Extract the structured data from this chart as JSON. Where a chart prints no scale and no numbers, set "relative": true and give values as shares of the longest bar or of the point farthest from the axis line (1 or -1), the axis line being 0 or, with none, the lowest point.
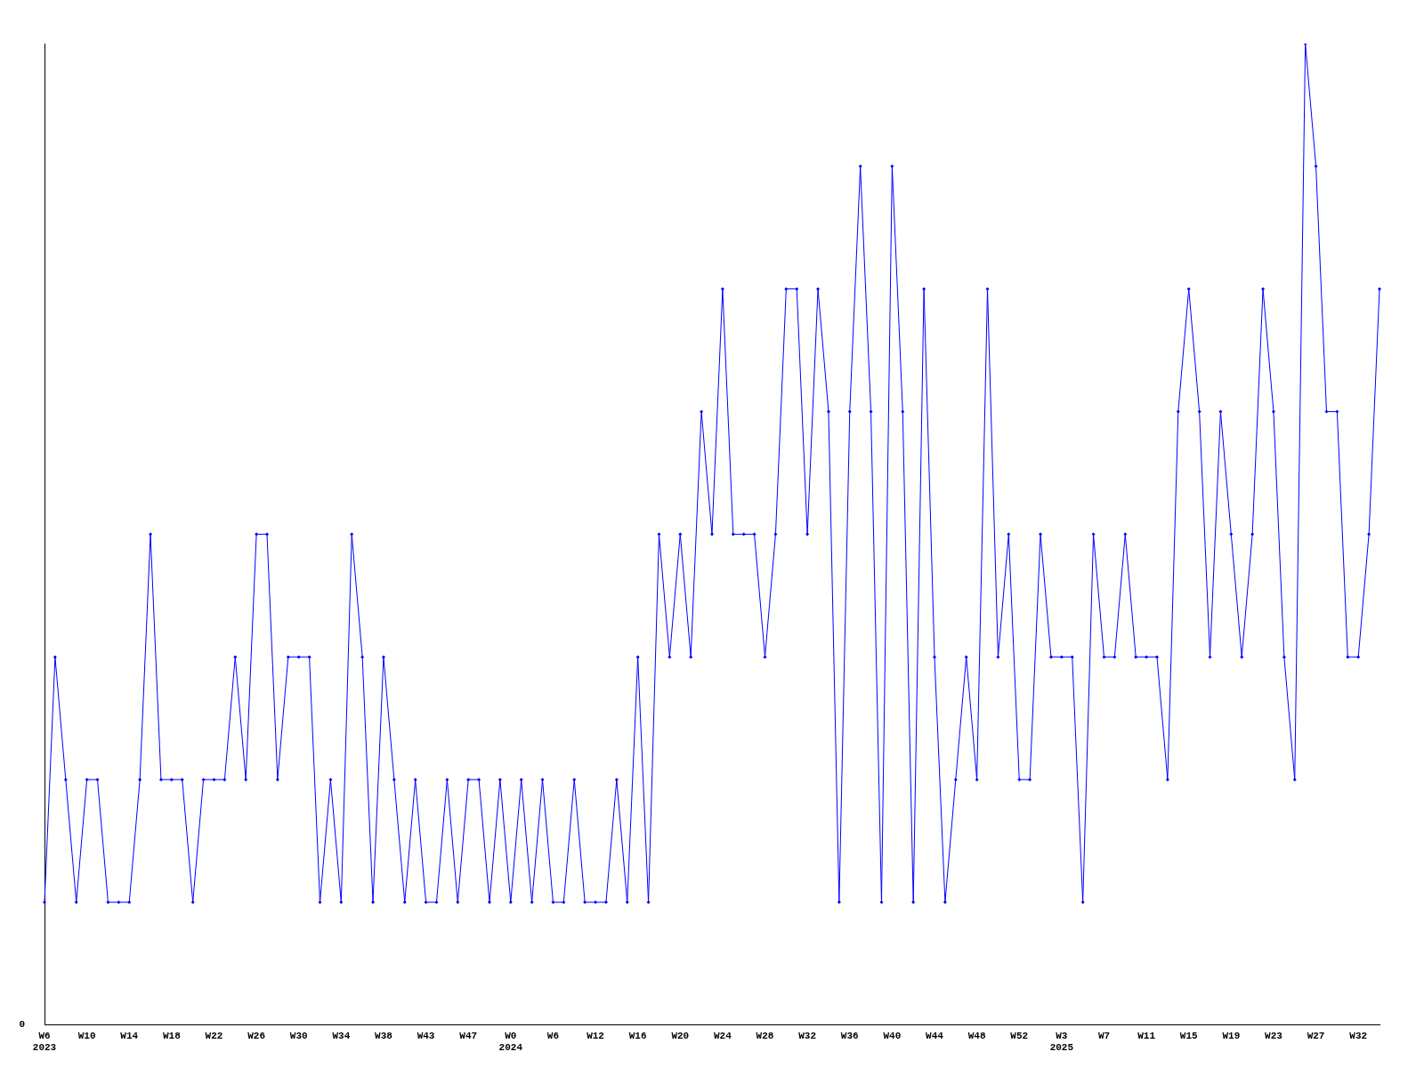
{
  "chart_data": {
    "type": "line",
    "relative": true,
    "color": "#0000ff",
    "marker": "diamond",
    "line_style": "solid",
    "grid": false,
    "legend": false,
    "categories": [
      "W6\n2023",
      null,
      null,
      null,
      "W10",
      null,
      null,
      null,
      "W14",
      null,
      null,
      null,
      "W18",
      null,
      null,
      null,
      "W22",
      null,
      null,
      null,
      "W26",
      null,
      null,
      null,
      "W30",
      null,
      null,
      null,
      "W34",
      null,
      null,
      null,
      "W38",
      null,
      null,
      null,
      "W43",
      null,
      null,
      null,
      "W47",
      null,
      null,
      null,
      "W0\n2024",
      null,
      null,
      null,
      "W6",
      null,
      null,
      null,
      "W12",
      null,
      null,
      null,
      "W16",
      null,
      null,
      null,
      "W20",
      null,
      null,
      null,
      "W24",
      null,
      null,
      null,
      "W28",
      null,
      null,
      null,
      "W32",
      null,
      null,
      null,
      "W36",
      null,
      null,
      null,
      "W40",
      null,
      null,
      null,
      "W44",
      null,
      null,
      null,
      "W48",
      null,
      null,
      null,
      "W52",
      null,
      null,
      null,
      "W3\n2025",
      null,
      null,
      null,
      "W7",
      null,
      null,
      null,
      "W11",
      null,
      null,
      null,
      "W15",
      null,
      null,
      null,
      "W19",
      null,
      null,
      null,
      "W23",
      null,
      null,
      null,
      "W27",
      null,
      null,
      null,
      "W32",
      null,
      null
    ],
    "values": [
      0.125,
      0.375,
      0.25,
      0.125,
      0.25,
      0.25,
      0.125,
      0.125,
      0.125,
      0.25,
      0.5,
      0.25,
      0.25,
      0.25,
      0.125,
      0.25,
      0.25,
      0.25,
      0.375,
      0.25,
      0.5,
      0.5,
      0.25,
      0.375,
      0.375,
      0.375,
      0.125,
      0.25,
      0.125,
      0.5,
      0.375,
      0.125,
      0.375,
      0.25,
      0.125,
      0.25,
      0.125,
      0.125,
      0.25,
      0.125,
      0.25,
      0.25,
      0.125,
      0.25,
      0.125,
      0.25,
      0.125,
      0.25,
      0.125,
      0.125,
      0.25,
      0.125,
      0.125,
      0.125,
      0.25,
      0.125,
      0.375,
      0.125,
      0.5,
      0.375,
      0.5,
      0.375,
      0.625,
      0.5,
      0.75,
      0.5,
      0.5,
      0.5,
      0.375,
      0.5,
      0.75,
      0.75,
      0.5,
      0.75,
      0.625,
      0.125,
      0.625,
      0.875,
      0.625,
      0.125,
      0.875,
      0.625,
      0.125,
      0.75,
      0.375,
      0.125,
      0.25,
      0.375,
      0.25,
      0.75,
      0.375,
      0.5,
      0.25,
      0.25,
      0.5,
      0.375,
      0.375,
      0.375,
      0.125,
      0.5,
      0.375,
      0.375,
      0.5,
      0.375,
      0.375,
      0.375,
      0.25,
      0.625,
      0.75,
      0.625,
      0.375,
      0.625,
      0.5,
      0.375,
      0.5,
      0.75,
      0.625,
      0.375,
      0.25,
      1,
      0.875,
      0.625,
      0.625,
      0.375,
      0.375,
      0.5,
      0.75
    ],
    "annotations": [
      "0"
    ]
  }
}
